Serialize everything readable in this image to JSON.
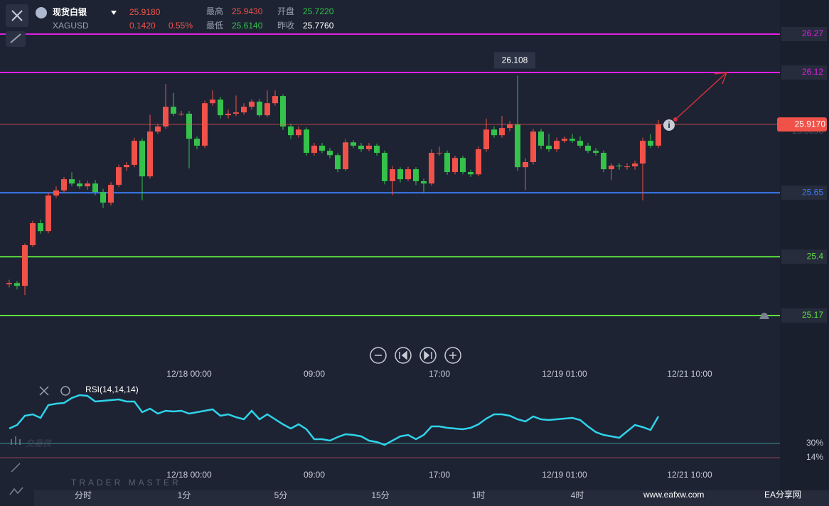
{
  "header": {
    "name": "现货白银",
    "symbol": "XAGUSD",
    "price": "25.9180",
    "change": "0.1420",
    "change_pct": "0.55%",
    "high_label": "最高",
    "high": "25.9430",
    "open_label": "开盘",
    "open": "25.7220",
    "low_label": "最低",
    "low": "25.6140",
    "prev_label": "昨收",
    "prev": "25.7760"
  },
  "toolbar": [
    "分时",
    "1分",
    "5分",
    "15分",
    "1时",
    "4时"
  ],
  "watermark": {
    "title": "交易侠",
    "subtitle": "TRADER MASTER",
    "site": "www.eafxw.com",
    "site_name": "EA分享网"
  },
  "chart_data": [
    {
      "type": "candlestick",
      "up_color": "#f0524a",
      "down_color": "#35c24a",
      "ylim": [
        25.1,
        26.4
      ],
      "open": [
        25.292,
        25.297,
        25.286,
        25.445,
        25.531,
        25.5,
        25.639,
        25.659,
        25.703,
        25.686,
        25.675,
        25.686,
        25.653,
        25.611,
        25.681,
        25.75,
        25.759,
        25.853,
        25.714,
        25.889,
        25.909,
        25.986,
        25.959,
        25.959,
        25.861,
        25.834,
        26.0,
        26.014,
        25.953,
        25.959,
        25.964,
        25.986,
        26.006,
        25.953,
        26.0,
        26.028,
        25.909,
        25.875,
        25.897,
        25.806,
        25.834,
        25.814,
        25.797,
        25.742,
        25.847,
        25.834,
        25.82,
        25.834,
        25.806,
        25.695,
        25.742,
        25.703,
        25.742,
        25.695,
        25.686,
        25.806,
        25.806,
        25.731,
        25.786,
        25.731,
        25.722,
        25.82,
        25.897,
        25.875,
        25.903,
        25.917,
        25.75,
        25.77,
        25.889,
        25.834,
        25.82,
        25.853,
        25.861,
        25.853,
        25.834,
        25.814,
        25.806,
        25.742,
        25.756,
        25.753,
        25.753,
        25.764,
        25.853,
        25.834
      ],
      "high": [
        25.31,
        25.305,
        25.452,
        25.54,
        25.545,
        25.65,
        25.675,
        25.712,
        25.73,
        25.7,
        25.697,
        25.7,
        25.665,
        25.692,
        25.76,
        25.77,
        25.865,
        25.862,
        25.955,
        25.92,
        26.075,
        26.04,
        25.97,
        25.97,
        25.87,
        26.01,
        26.05,
        26.025,
        25.975,
        26.03,
        26.0,
        26.015,
        26.015,
        26.05,
        26.05,
        26.035,
        25.92,
        25.91,
        25.905,
        25.845,
        25.845,
        25.825,
        25.805,
        25.86,
        25.855,
        25.845,
        25.845,
        25.842,
        25.815,
        25.755,
        25.75,
        25.752,
        25.75,
        25.705,
        25.82,
        25.83,
        25.815,
        25.795,
        25.795,
        25.74,
        25.83,
        25.94,
        25.91,
        25.95,
        25.93,
        26.108,
        25.785,
        25.9,
        25.9,
        25.88,
        25.865,
        25.87,
        25.88,
        25.87,
        25.845,
        25.825,
        25.815,
        25.765,
        25.765,
        25.765,
        25.775,
        25.865,
        25.88,
        25.935
      ],
      "low": [
        25.28,
        25.272,
        25.25,
        25.438,
        25.49,
        25.492,
        25.63,
        25.65,
        25.676,
        25.665,
        25.662,
        25.64,
        25.59,
        25.6,
        25.672,
        25.735,
        25.75,
        25.62,
        25.705,
        25.88,
        25.9,
        25.95,
        25.95,
        25.745,
        25.82,
        25.825,
        25.99,
        25.94,
        25.94,
        25.95,
        25.955,
        25.975,
        25.945,
        25.945,
        25.99,
        25.895,
        25.86,
        25.865,
        25.795,
        25.795,
        25.805,
        25.785,
        25.73,
        25.735,
        25.825,
        25.81,
        25.812,
        25.795,
        25.683,
        25.64,
        25.69,
        25.695,
        25.68,
        25.65,
        25.678,
        25.795,
        25.72,
        25.722,
        25.722,
        25.712,
        25.714,
        25.81,
        25.865,
        25.865,
        25.89,
        25.735,
        25.66,
        25.76,
        25.82,
        25.81,
        25.81,
        25.845,
        25.845,
        25.825,
        25.805,
        25.795,
        25.73,
        25.7,
        25.74,
        25.74,
        25.74,
        25.62,
        25.825,
        25.825
      ],
      "close": [
        25.297,
        25.286,
        25.445,
        25.531,
        25.5,
        25.639,
        25.659,
        25.703,
        25.686,
        25.675,
        25.686,
        25.653,
        25.611,
        25.681,
        25.75,
        25.759,
        25.853,
        25.714,
        25.889,
        25.909,
        25.986,
        25.959,
        25.959,
        25.861,
        25.834,
        26.0,
        26.014,
        25.953,
        25.959,
        25.964,
        25.986,
        26.006,
        25.953,
        26.0,
        26.028,
        25.909,
        25.875,
        25.897,
        25.806,
        25.834,
        25.814,
        25.797,
        25.742,
        25.847,
        25.834,
        25.82,
        25.834,
        25.806,
        25.695,
        25.742,
        25.703,
        25.742,
        25.695,
        25.686,
        25.806,
        25.806,
        25.731,
        25.786,
        25.731,
        25.722,
        25.82,
        25.897,
        25.875,
        25.903,
        25.917,
        25.75,
        25.77,
        25.889,
        25.834,
        25.82,
        25.853,
        25.861,
        25.853,
        25.834,
        25.814,
        25.806,
        25.742,
        25.756,
        25.753,
        25.753,
        25.764,
        25.853,
        25.834,
        25.917
      ],
      "max_marker": 65,
      "hlines": [
        {
          "value": 26.27,
          "color": "#e21ee6"
        },
        {
          "value": 26.12,
          "color": "#e21ee6"
        },
        {
          "value": 25.65,
          "color": "#3d7cf5"
        },
        {
          "value": 25.4,
          "color": "#5ee23e"
        },
        {
          "value": 25.17,
          "color": "#5ee23e"
        }
      ],
      "last": {
        "value": 25.917,
        "label": "25.9170",
        "color": "#f0524a"
      },
      "yticks": [
        25.8898
      ],
      "xticks": [
        {
          "value": 23,
          "label": "12/18 00:00"
        },
        {
          "value": 39,
          "label": "09:00"
        },
        {
          "value": 55,
          "label": "17:00"
        },
        {
          "value": 71,
          "label": "12/19 01:00"
        },
        {
          "value": 87,
          "label": "12/21 10:00"
        }
      ]
    },
    {
      "type": "line",
      "title": "RSI(14,14,14)",
      "color": "#2fd3ea",
      "ylim": [
        0,
        100
      ],
      "values": [
        46.8,
        50.8,
        61.2,
        62.8,
        58.8,
        73.2,
        74.8,
        75.6,
        81.2,
        84.4,
        83.6,
        77.2,
        78,
        78.8,
        79.6,
        77.2,
        77.2,
        65.2,
        69.2,
        63.6,
        66.8,
        66,
        66.8,
        63.6,
        65.2,
        66.8,
        68.4,
        61.2,
        62.8,
        59.6,
        57.2,
        66.8,
        57.2,
        62.8,
        57.2,
        51.6,
        46.8,
        51.6,
        46,
        34.8,
        34.8,
        33.2,
        37.2,
        40.4,
        39.6,
        38,
        33.2,
        31.6,
        28.4,
        33.2,
        38,
        39.6,
        34.8,
        39.6,
        49.2,
        49.2,
        47.6,
        46.8,
        46,
        47.6,
        51.6,
        58,
        62.8,
        62.8,
        61.2,
        57.2,
        54.8,
        60.4,
        57.2,
        56.4,
        57.2,
        58,
        58.8,
        56.4,
        49.2,
        42.8,
        39.6,
        38,
        36.4,
        43.6,
        50.8,
        48.4,
        45.2,
        60.4
      ],
      "yticks": [
        {
          "value": 30,
          "label": "30%",
          "color": "#3b8f8c"
        },
        {
          "value": 14,
          "label": "14%",
          "color": "#8e4458"
        }
      ],
      "xticks": [
        {
          "value": 23,
          "label": "12/18 00:00"
        },
        {
          "value": 39,
          "label": "09:00"
        },
        {
          "value": 55,
          "label": "17:00"
        },
        {
          "value": 71,
          "label": "12/19 01:00"
        },
        {
          "value": 87,
          "label": "12/21 10:00"
        }
      ]
    }
  ]
}
